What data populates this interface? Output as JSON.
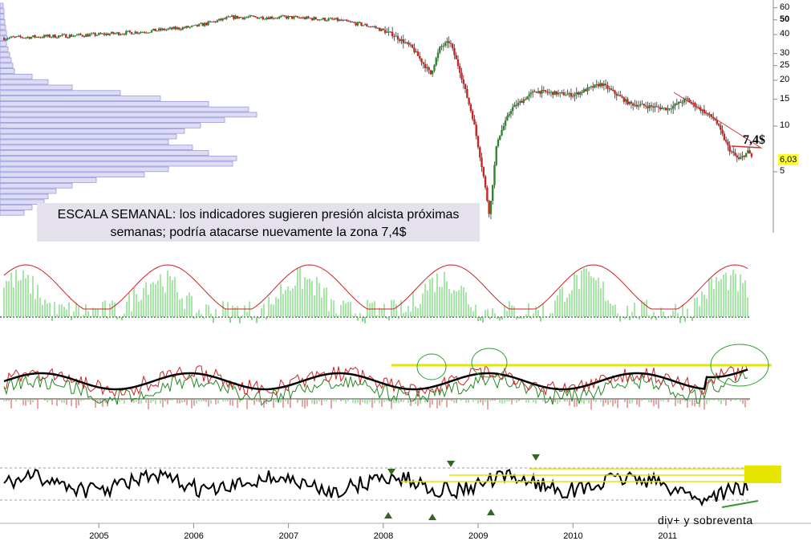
{
  "chart_data": {
    "type": "candlestick",
    "scale": "weekly",
    "yscale": "log",
    "price_ticks": [
      60,
      50,
      40,
      30,
      25,
      20,
      15,
      10,
      5
    ],
    "x_ticks": [
      "2005",
      "2006",
      "2007",
      "2008",
      "2009",
      "2010",
      "2011"
    ],
    "price_path": [
      [
        2004.0,
        38
      ],
      [
        2004.5,
        39
      ],
      [
        2005.0,
        40
      ],
      [
        2005.5,
        42
      ],
      [
        2006.0,
        45
      ],
      [
        2006.4,
        52
      ],
      [
        2007.0,
        52
      ],
      [
        2007.5,
        50
      ],
      [
        2007.9,
        45
      ],
      [
        2008.1,
        40
      ],
      [
        2008.3,
        33
      ],
      [
        2008.5,
        22
      ],
      [
        2008.6,
        33
      ],
      [
        2008.7,
        36
      ],
      [
        2008.8,
        24
      ],
      [
        2008.95,
        11
      ],
      [
        2009.05,
        5
      ],
      [
        2009.12,
        2.6
      ],
      [
        2009.2,
        8
      ],
      [
        2009.35,
        13
      ],
      [
        2009.6,
        17
      ],
      [
        2010.0,
        16
      ],
      [
        2010.3,
        19
      ],
      [
        2010.6,
        14
      ],
      [
        2011.0,
        13
      ],
      [
        2011.2,
        15
      ],
      [
        2011.5,
        11
      ],
      [
        2011.65,
        7
      ],
      [
        2011.75,
        6
      ],
      [
        2011.85,
        6.8
      ],
      [
        2011.9,
        6.03
      ]
    ],
    "last_price": "6,03",
    "resistance_label": "7,4$",
    "volume_profile": [
      4,
      5,
      5,
      6,
      7,
      8,
      9,
      8,
      10,
      12,
      14,
      16,
      18,
      40,
      60,
      90,
      150,
      200,
      260,
      310,
      320,
      280,
      250,
      230,
      220,
      210,
      240,
      260,
      295,
      290,
      210,
      180,
      120,
      90,
      70,
      60,
      55,
      40,
      30
    ],
    "oscillator_label": "div+ y sobreventa"
  },
  "annotation": {
    "line1": "ESCALA SEMANAL: los indicadores sugieren presión alcista próximas",
    "line2": "semanas; podría atacarse nuevamente la zona 7,4$"
  },
  "colors": {
    "up": "#2a8a2a",
    "down": "#cc2222",
    "profile": "#9999dd",
    "highlight": "#e6e600",
    "histogram_up": "#88dd88",
    "histogram_down": "#dd8888"
  }
}
